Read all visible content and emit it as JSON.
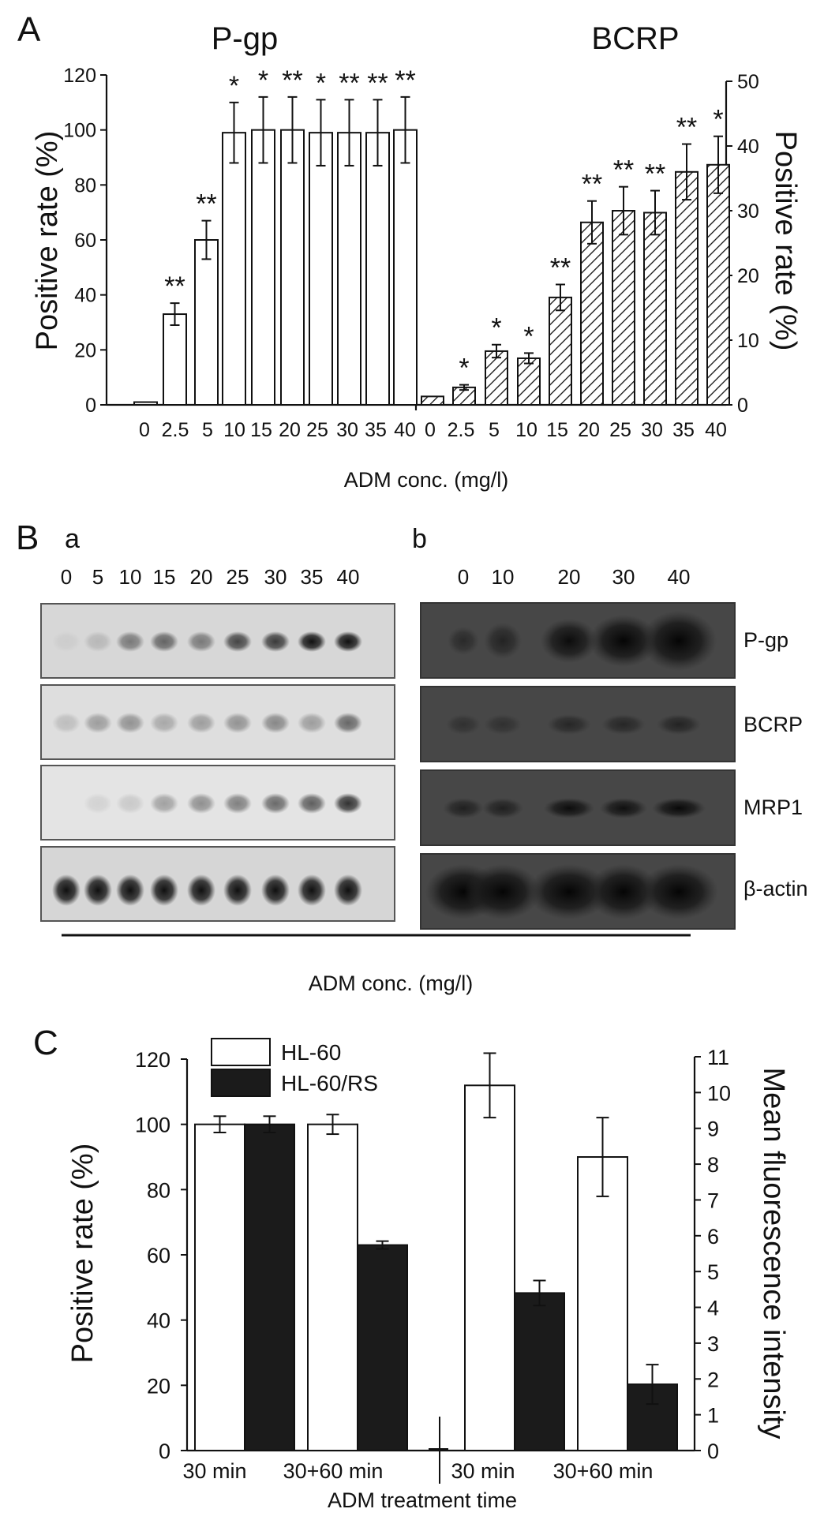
{
  "panel_a": {
    "letter": "A",
    "left_title": "P-gp",
    "right_title": "BCRP",
    "ylabel_left": "Positive rate (%)",
    "ylabel_right": "Positive rate (%)",
    "xlabel": "ADM conc. (mg/l)"
  },
  "panel_b": {
    "letter": "B",
    "sub_a": "a",
    "sub_b": "b",
    "lanes_a": [
      "0",
      "5",
      "10",
      "15",
      "20",
      "25",
      "30",
      "35",
      "40"
    ],
    "lanes_b": [
      "0",
      "10",
      "20",
      "30",
      "40"
    ],
    "rows": [
      "P-gp",
      "BCRP",
      "MRP1",
      "β-actin"
    ],
    "xlabel": "ADM conc. (mg/l)"
  },
  "panel_c": {
    "letter": "C",
    "ylabel_left": "Positive rate (%)",
    "ylabel_right": "Mean fluorescence intensity",
    "xlabel": "ADM treatment time",
    "legend": [
      "HL-60",
      "HL-60/RS"
    ]
  },
  "chart_data": [
    {
      "type": "bar",
      "title": "P-gp",
      "ylabel": "Positive rate (%)",
      "xlabel": "ADM conc. (mg/l)",
      "ylim": [
        0,
        120
      ],
      "yticks": [
        "0",
        "20",
        "40",
        "60",
        "80",
        "100",
        "120"
      ],
      "categories": [
        "0",
        "2.5",
        "5",
        "10",
        "15",
        "20",
        "25",
        "30",
        "35",
        "40"
      ],
      "values": [
        1,
        33,
        60,
        99,
        100,
        100,
        99,
        99,
        99,
        100
      ],
      "errors": [
        0,
        4,
        7,
        11,
        12,
        12,
        12,
        12,
        12,
        12
      ],
      "significance": [
        "",
        "**",
        "**",
        "*",
        "*",
        "**",
        "*",
        "**",
        "**",
        "**"
      ],
      "bar_style": "open"
    },
    {
      "type": "bar",
      "title": "BCRP",
      "ylabel": "Positive rate (%)",
      "xlabel": "ADM conc. (mg/l)",
      "ylim": [
        0,
        50
      ],
      "yticks": [
        "0",
        "10",
        "20",
        "30",
        "40",
        "50"
      ],
      "categories": [
        "0",
        "2.5",
        "5",
        "10",
        "15",
        "20",
        "25",
        "30",
        "35",
        "40"
      ],
      "values": [
        1.3,
        2.7,
        8.3,
        7.2,
        16.6,
        28.2,
        30.0,
        29.7,
        36.0,
        37.1
      ],
      "errors": [
        0,
        0.4,
        1.0,
        0.8,
        2.0,
        3.3,
        3.7,
        3.4,
        4.3,
        4.4
      ],
      "significance": [
        "",
        "*",
        "*",
        "*",
        "**",
        "**",
        "**",
        "**",
        "**",
        "*"
      ],
      "bar_style": "hatched"
    },
    {
      "type": "bar",
      "xlabel": "ADM treatment time",
      "ylabel": "Positive rate (%)",
      "ylabel_right": "Mean fluorescence intensity",
      "ylim": [
        0,
        120
      ],
      "ylim_right": [
        0,
        11
      ],
      "yticks": [
        "0",
        "20",
        "40",
        "60",
        "80",
        "100",
        "120"
      ],
      "yticks_right": [
        "0",
        "1",
        "2",
        "3",
        "4",
        "5",
        "6",
        "7",
        "8",
        "9",
        "10",
        "11"
      ],
      "categories": [
        "30 min",
        "30+60 min",
        "30 min",
        "30+60 min"
      ],
      "category_axis": [
        "left",
        "left",
        "right",
        "right"
      ],
      "series": [
        {
          "name": "HL-60",
          "values": [
            100,
            100,
            10.2,
            8.2
          ],
          "errors": [
            2.5,
            3.0,
            0.9,
            1.1
          ]
        },
        {
          "name": "HL-60/RS",
          "values": [
            100,
            63,
            4.4,
            1.85
          ],
          "errors": [
            2.5,
            1.2,
            0.35,
            0.55
          ]
        }
      ]
    }
  ]
}
